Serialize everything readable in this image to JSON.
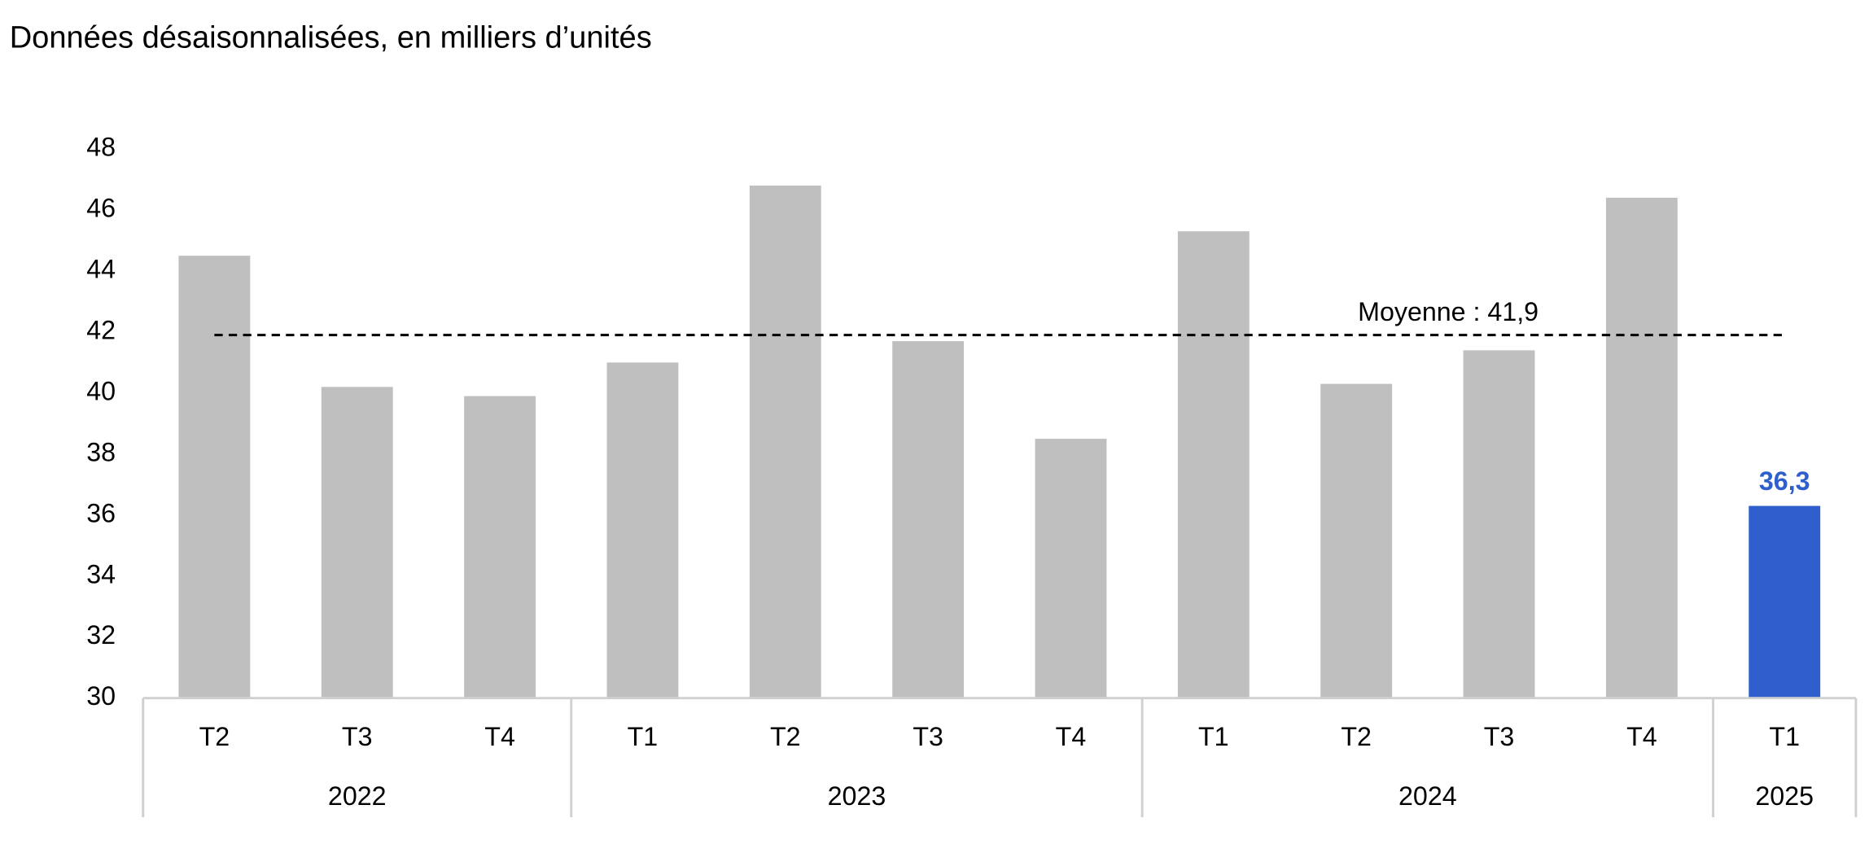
{
  "chart_data": {
    "type": "bar",
    "title": "Données désaisonnalisées, en milliers d’unités",
    "categories": [
      "T2",
      "T3",
      "T4",
      "T1",
      "T2",
      "T3",
      "T4",
      "T1",
      "T2",
      "T3",
      "T4",
      "T1"
    ],
    "groups": [
      {
        "label": "2022",
        "size": 3
      },
      {
        "label": "2023",
        "size": 4
      },
      {
        "label": "2024",
        "size": 4
      },
      {
        "label": "2025",
        "size": 1
      }
    ],
    "values": [
      44.5,
      40.2,
      39.9,
      41.0,
      46.8,
      41.7,
      38.5,
      45.3,
      40.3,
      41.4,
      46.4,
      36.3
    ],
    "value_labels": [
      null,
      null,
      null,
      null,
      null,
      null,
      null,
      null,
      null,
      null,
      null,
      "36,3"
    ],
    "colors": [
      "#bfbfbf",
      "#bfbfbf",
      "#bfbfbf",
      "#bfbfbf",
      "#bfbfbf",
      "#bfbfbf",
      "#bfbfbf",
      "#bfbfbf",
      "#bfbfbf",
      "#bfbfbf",
      "#bfbfbf",
      "#2e5fcc"
    ],
    "reference_line": {
      "value": 41.9,
      "label": "Moyenne : 41,9"
    },
    "ylim": [
      30,
      48
    ],
    "yticks": [
      30,
      32,
      34,
      36,
      38,
      40,
      42,
      44,
      46,
      48
    ],
    "grid": false
  }
}
